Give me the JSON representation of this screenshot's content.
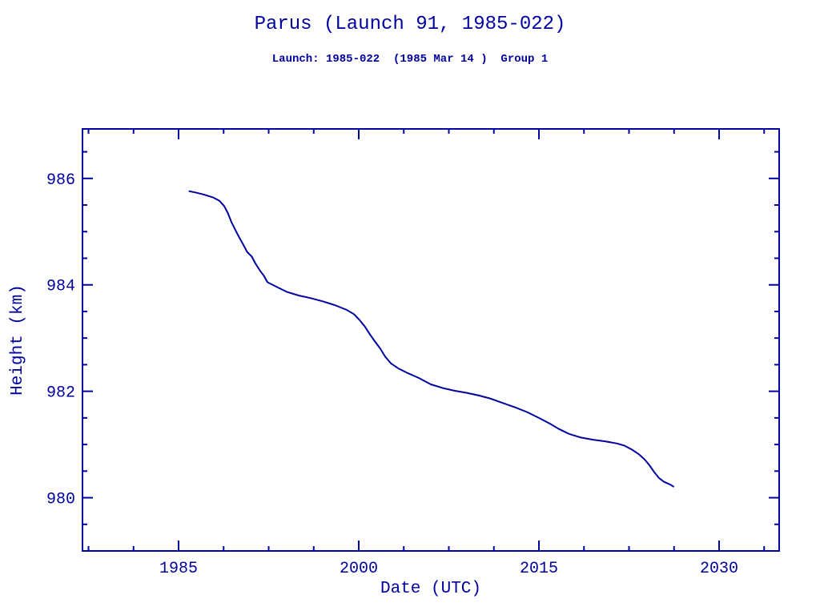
{
  "ink_color": "#0000a0",
  "background_color": "#ffffff",
  "chart_data": {
    "type": "line",
    "title": "Parus (Launch 91, 1985-022)",
    "subtitle": "Launch: 1985-022  (1985 Mar 14 )  Group 1",
    "xlabel": "Date (UTC)",
    "ylabel": "Height (km)",
    "xlim": [
      1977.0,
      2035.0
    ],
    "ylim": [
      979.0,
      986.93
    ],
    "x_major_ticks": [
      1985,
      2000,
      2015,
      2030
    ],
    "x_minor_step": 3.75,
    "y_major_ticks": [
      980,
      982,
      984,
      986
    ],
    "y_minor_step": 0.5,
    "grid": false,
    "legend": null,
    "line_color": "#0000a0",
    "series": [
      {
        "name": "height_km",
        "points": [
          [
            1985.9,
            985.76
          ],
          [
            1986.5,
            985.73
          ],
          [
            1987.2,
            985.69
          ],
          [
            1987.9,
            985.64
          ],
          [
            1988.4,
            985.58
          ],
          [
            1988.8,
            985.48
          ],
          [
            1989.1,
            985.35
          ],
          [
            1989.4,
            985.18
          ],
          [
            1989.8,
            985.0
          ],
          [
            1990.1,
            984.87
          ],
          [
            1990.4,
            984.75
          ],
          [
            1990.7,
            984.62
          ],
          [
            1991.1,
            984.53
          ],
          [
            1991.4,
            984.4
          ],
          [
            1991.8,
            984.26
          ],
          [
            1992.1,
            984.17
          ],
          [
            1992.4,
            984.05
          ],
          [
            1993.0,
            983.98
          ],
          [
            1994.0,
            983.87
          ],
          [
            1995.0,
            983.8
          ],
          [
            1996.0,
            983.75
          ],
          [
            1997.0,
            983.69
          ],
          [
            1998.0,
            983.62
          ],
          [
            1999.0,
            983.53
          ],
          [
            1999.6,
            983.45
          ],
          [
            2000.1,
            983.33
          ],
          [
            2000.5,
            983.22
          ],
          [
            2000.9,
            983.08
          ],
          [
            2001.3,
            982.95
          ],
          [
            2001.8,
            982.8
          ],
          [
            2002.2,
            982.65
          ],
          [
            2002.7,
            982.52
          ],
          [
            2003.3,
            982.43
          ],
          [
            2004.0,
            982.35
          ],
          [
            2005.0,
            982.25
          ],
          [
            2006.0,
            982.13
          ],
          [
            2007.0,
            982.06
          ],
          [
            2008.0,
            982.01
          ],
          [
            2009.0,
            981.97
          ],
          [
            2010.0,
            981.92
          ],
          [
            2011.0,
            981.86
          ],
          [
            2012.0,
            981.78
          ],
          [
            2013.0,
            981.7
          ],
          [
            2014.0,
            981.61
          ],
          [
            2015.0,
            981.5
          ],
          [
            2016.0,
            981.38
          ],
          [
            2016.6,
            981.3
          ],
          [
            2017.5,
            981.2
          ],
          [
            2018.5,
            981.13
          ],
          [
            2019.5,
            981.09
          ],
          [
            2020.5,
            981.06
          ],
          [
            2021.5,
            981.02
          ],
          [
            2022.1,
            980.98
          ],
          [
            2022.7,
            980.91
          ],
          [
            2023.3,
            980.82
          ],
          [
            2023.8,
            980.72
          ],
          [
            2024.2,
            980.61
          ],
          [
            2024.6,
            980.48
          ],
          [
            2025.0,
            980.37
          ],
          [
            2025.4,
            980.3
          ],
          [
            2025.9,
            980.25
          ],
          [
            2026.2,
            980.21
          ]
        ]
      }
    ]
  }
}
